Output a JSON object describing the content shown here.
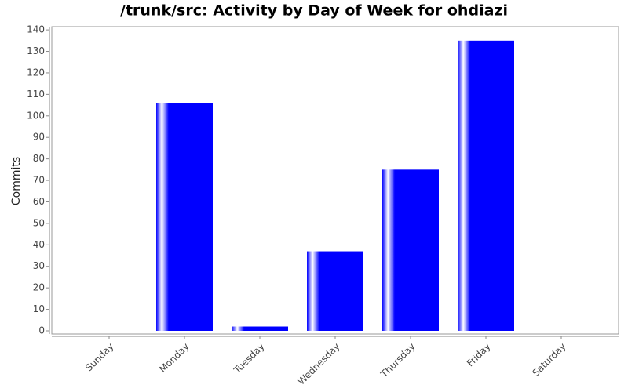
{
  "chart_data": {
    "type": "bar",
    "title": "/trunk/src: Activity by Day of Week for ohdiazi",
    "y_label": "Commits",
    "categories": [
      "Sunday",
      "Monday",
      "Tuesday",
      "Wednesday",
      "Thursday",
      "Friday",
      "Saturday"
    ],
    "values": [
      0,
      106,
      2,
      37,
      75,
      135,
      0
    ],
    "color": "#0000ff",
    "ylim": [
      0,
      141.5
    ],
    "yticks": [
      0,
      10,
      20,
      30,
      40,
      50,
      60,
      70,
      80,
      90,
      100,
      110,
      120,
      130,
      140
    ],
    "grid": false
  }
}
